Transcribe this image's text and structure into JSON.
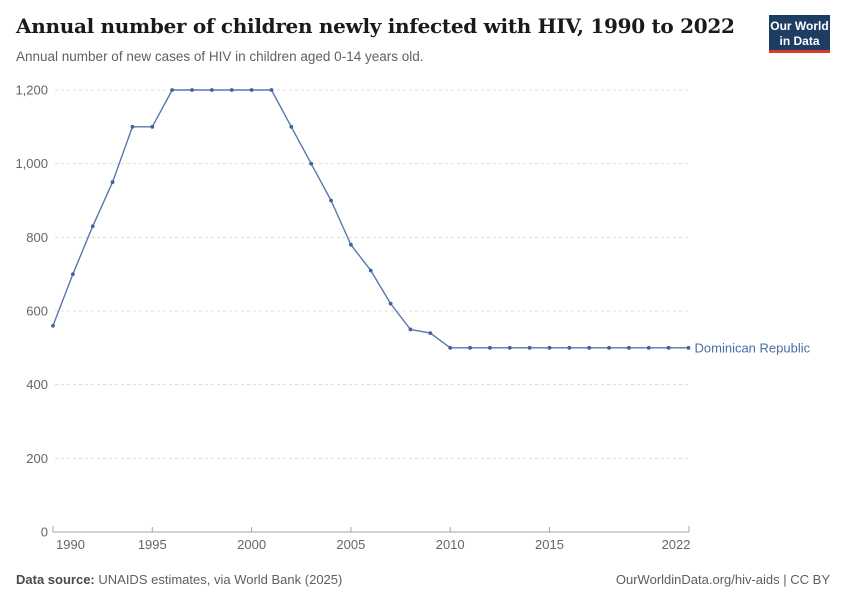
{
  "header": {
    "title": "Annual number of children newly infected with HIV, 1990 to 2022",
    "subtitle": "Annual number of new cases of HIV in children aged 0-14 years old.",
    "logo_line1": "Our World",
    "logo_line2": "in Data"
  },
  "footer": {
    "source_label": "Data source:",
    "source_text": "UNAIDS estimates, via World Bank (2025)",
    "license_text": "OurWorldinData.org/hiv-aids | CC BY"
  },
  "colors": {
    "line": "#5878ab",
    "point": "#44629c",
    "entity_label": "#4c6ea6",
    "grid": "#dcdcdc",
    "axis": "#a5a5a5",
    "tick_label": "#666666",
    "logo_bg": "#1d3d63",
    "logo_red": "#d93b2b"
  },
  "chart_data": {
    "type": "line",
    "title": "Annual number of children newly infected with HIV, 1990 to 2022",
    "xlabel": "",
    "ylabel": "",
    "xlim": [
      1990,
      2022
    ],
    "ylim": [
      0,
      1200
    ],
    "grid": true,
    "legend_position": "end-of-line",
    "x": [
      1990,
      1991,
      1992,
      1993,
      1994,
      1995,
      1996,
      1997,
      1998,
      1999,
      2000,
      2001,
      2002,
      2003,
      2004,
      2005,
      2006,
      2007,
      2008,
      2009,
      2010,
      2011,
      2012,
      2013,
      2014,
      2015,
      2016,
      2017,
      2018,
      2019,
      2020,
      2021,
      2022
    ],
    "series": [
      {
        "name": "Dominican Republic",
        "values": [
          560,
          700,
          830,
          950,
          1100,
          1100,
          1200,
          1200,
          1200,
          1200,
          1200,
          1200,
          1100,
          1000,
          900,
          780,
          710,
          620,
          550,
          540,
          500,
          500,
          500,
          500,
          500,
          500,
          500,
          500,
          500,
          500,
          500,
          500,
          500
        ]
      }
    ],
    "yticks": [
      {
        "v": 0,
        "label": "0"
      },
      {
        "v": 200,
        "label": "200"
      },
      {
        "v": 400,
        "label": "400"
      },
      {
        "v": 600,
        "label": "600"
      },
      {
        "v": 800,
        "label": "800"
      },
      {
        "v": 1000,
        "label": "1,000"
      },
      {
        "v": 1200,
        "label": "1,200"
      }
    ],
    "xticks": [
      1990,
      1995,
      2000,
      2005,
      2010,
      2015,
      2022
    ]
  }
}
